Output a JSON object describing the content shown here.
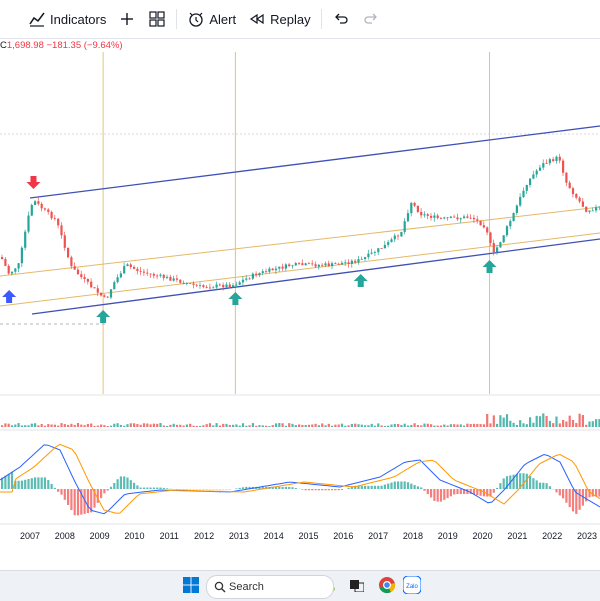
{
  "toolbar": {
    "indicators_label": "Indicators",
    "alert_label": "Alert",
    "replay_label": "Replay"
  },
  "ohlc": {
    "close_prefix": "C",
    "close_value": "1,698.98",
    "change": "−181.35 (−9.64%)"
  },
  "chart_data": {
    "type": "candlestick",
    "x_ticks": [
      "2007",
      "2008",
      "2009",
      "2010",
      "2011",
      "2012",
      "2013",
      "2014",
      "2015",
      "2016",
      "2017",
      "2018",
      "2019",
      "2020",
      "2021",
      "2022",
      "2023"
    ],
    "arrows": [
      {
        "year": 2006.4,
        "direction": "up",
        "color": "#3d5afe"
      },
      {
        "year": 2007.1,
        "direction": "down",
        "color": "#f23645"
      },
      {
        "year": 2009.1,
        "direction": "up",
        "color": "#26a69a"
      },
      {
        "year": 2012.9,
        "direction": "up",
        "color": "#26a69a"
      },
      {
        "year": 2016.5,
        "direction": "up",
        "color": "#26a69a"
      },
      {
        "year": 2020.2,
        "direction": "up",
        "color": "#26a69a"
      }
    ],
    "vertical_lines": [
      2009.1,
      2012.9,
      2020.2
    ]
  },
  "taskbar": {
    "search_placeholder": "Search"
  },
  "colors": {
    "up": "#26a69a",
    "down": "#ef5350",
    "channel": "#3f51b5",
    "inner": "#e5b868",
    "vline": "#e6c27a"
  }
}
